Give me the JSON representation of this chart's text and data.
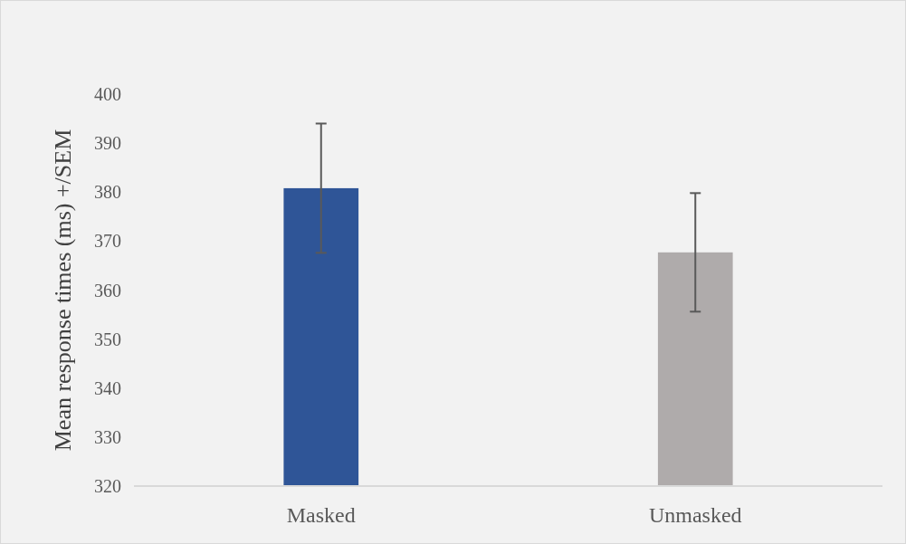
{
  "chart_data": {
    "type": "bar",
    "ylabel": "Mean response times (ms) +/SEM",
    "categories": [
      "Masked",
      "Unmasked"
    ],
    "values": [
      380.8,
      367.7
    ],
    "colors": [
      "#2f5597",
      "#afabab"
    ],
    "errors": [
      13.2,
      12.1
    ],
    "ylim": [
      320,
      400
    ],
    "yticks": [
      320,
      330,
      340,
      350,
      360,
      370,
      380,
      390,
      400
    ],
    "grid": false
  }
}
